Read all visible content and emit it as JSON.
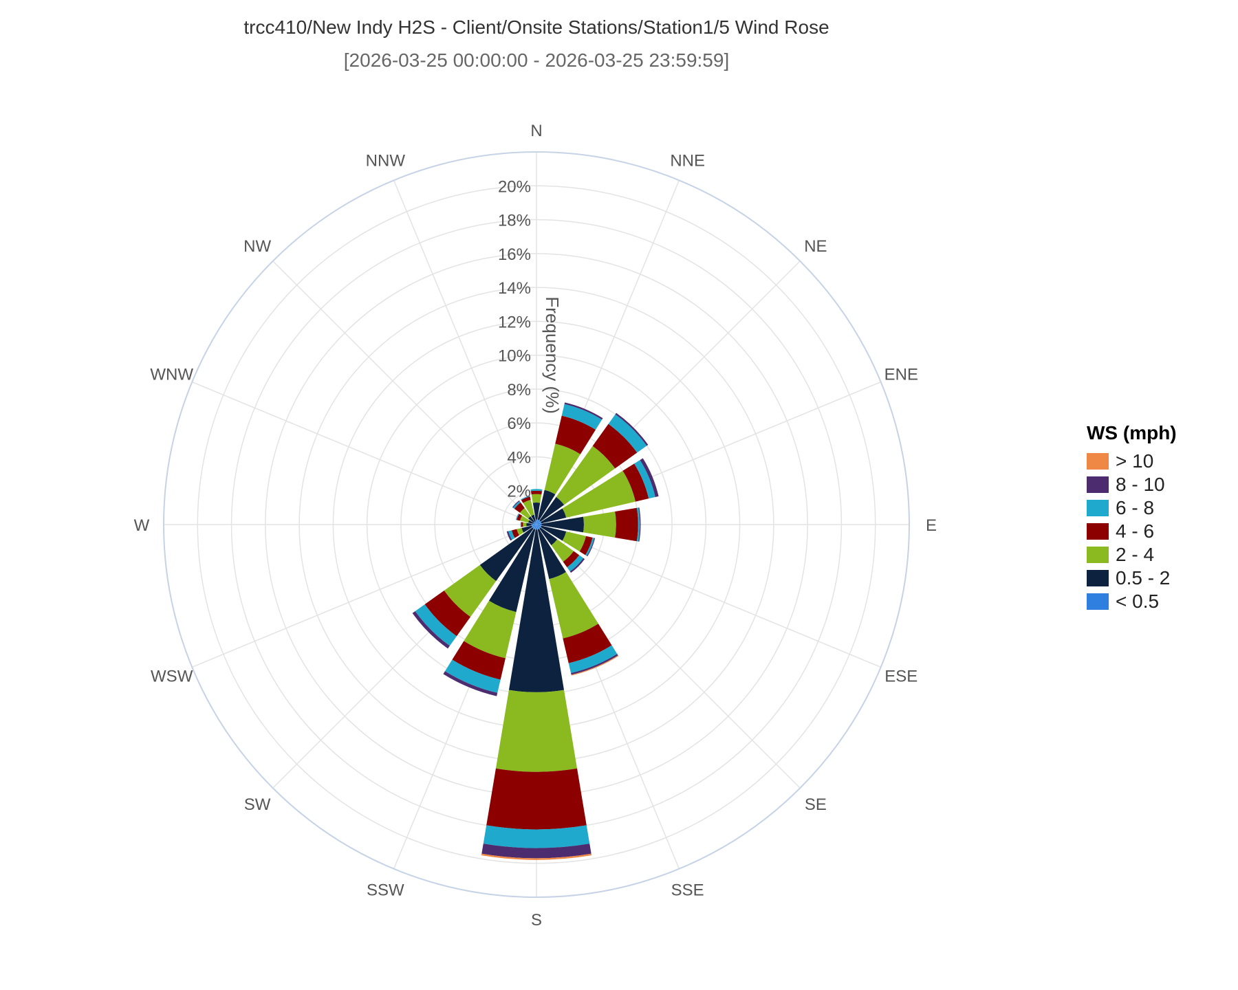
{
  "title": "trcc410/New Indy H2S - Client/Onsite Stations/Station1/5 Wind Rose",
  "subtitle": "[2026-03-25 00:00:00 - 2026-03-25 23:59:59]",
  "chart_data": {
    "type": "windrose",
    "radial_axis_label": "Frequency (%)",
    "radial_max": 22,
    "radial_ticks": [
      "2%",
      "4%",
      "6%",
      "8%",
      "10%",
      "12%",
      "14%",
      "16%",
      "18%",
      "20%"
    ],
    "radial_tick_values": [
      2,
      4,
      6,
      8,
      10,
      12,
      14,
      16,
      18,
      20
    ],
    "directions": [
      "N",
      "NNE",
      "NE",
      "ENE",
      "E",
      "ESE",
      "SE",
      "SSE",
      "S",
      "SSW",
      "SW",
      "WSW",
      "W",
      "WNW",
      "NW",
      "NNW"
    ],
    "legend_title": "WS (mph)",
    "legend_order": [
      "> 10",
      "8 - 10",
      "6 - 8",
      "4 - 6",
      "2 - 4",
      "0.5 - 2",
      "< 0.5"
    ],
    "colors": {
      "< 0.5": "#2e7fe0",
      "0.5 - 2": "#0c223f",
      "2 - 4": "#8aba20",
      "4 - 6": "#8c0000",
      "6 - 8": "#1fa9cc",
      "8 - 10": "#4c2c6e",
      "> 10": "#ee8844"
    },
    "stacking_order": [
      "< 0.5",
      "0.5 - 2",
      "2 - 4",
      "4 - 6",
      "6 - 8",
      "8 - 10",
      "> 10"
    ],
    "series": [
      {
        "name": "< 0.5",
        "values": [
          0.3,
          0.3,
          0.3,
          0.3,
          0.3,
          0.3,
          0.3,
          0.3,
          0.3,
          0.3,
          0.3,
          0.3,
          0.3,
          0.2,
          0.2,
          0.2
        ]
      },
      {
        "name": "0.5 - 2",
        "values": [
          1.0,
          1.8,
          1.7,
          1.5,
          2.5,
          1.5,
          1.2,
          3.0,
          9.6,
          5.0,
          3.8,
          0.6,
          0.3,
          0.3,
          0.4,
          0.4
        ]
      },
      {
        "name": "2 - 4",
        "values": [
          0.5,
          2.8,
          3.7,
          4.2,
          1.9,
          1.2,
          1.2,
          3.6,
          4.7,
          2.8,
          2.6,
          0.3,
          0.2,
          0.5,
          0.6,
          0.9
        ]
      },
      {
        "name": "4 - 6",
        "values": [
          0.2,
          1.7,
          1.6,
          0.8,
          1.3,
          0.4,
          0.4,
          1.5,
          3.4,
          1.3,
          1.4,
          0.3,
          0.1,
          0.2,
          0.4,
          0.2
        ]
      },
      {
        "name": "6 - 8",
        "values": [
          0.1,
          0.7,
          0.7,
          0.4,
          0.1,
          0.1,
          0.3,
          0.6,
          1.1,
          0.8,
          0.7,
          0.2,
          0.05,
          0.05,
          0.1,
          0.05
        ]
      },
      {
        "name": "8 - 10",
        "values": [
          0.0,
          0.1,
          0.1,
          0.2,
          0.05,
          0.05,
          0.1,
          0.1,
          0.6,
          0.2,
          0.2,
          0.1,
          0.0,
          0.0,
          0.05,
          0.0
        ]
      },
      {
        "name": "> 10",
        "values": [
          0.0,
          0.0,
          0.0,
          0.0,
          0.0,
          0.0,
          0.0,
          0.05,
          0.1,
          0.0,
          0.0,
          0.0,
          0.0,
          0.0,
          0.0,
          0.0
        ]
      }
    ],
    "grid": true,
    "legend_position": "right"
  }
}
